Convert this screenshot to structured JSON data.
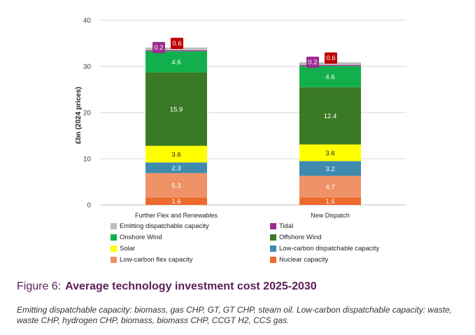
{
  "chart_data": {
    "type": "bar",
    "stacked": true,
    "categories": [
      "Further Flex and Renewables",
      "New Dispatch"
    ],
    "ylabel": "£bn (2024 prices)",
    "ylim": [
      0,
      40
    ],
    "yticks": [
      0,
      10,
      20,
      30,
      40
    ],
    "grid": true,
    "legend_position": "bottom",
    "series": [
      {
        "name": "Nuclear capacity",
        "color": "#ee6a2c",
        "label_color": "#ffffff",
        "values": [
          1.6,
          1.6
        ]
      },
      {
        "name": "Low-carbon flex capacity",
        "color": "#ef9267",
        "label_color": "#ffffff",
        "values": [
          5.3,
          4.7
        ]
      },
      {
        "name": "Low-carbon dispatchable capacity",
        "color": "#3f8bb0",
        "label_color": "#ffffff",
        "values": [
          2.3,
          3.2
        ]
      },
      {
        "name": "Solar",
        "color": "#ffff00",
        "label_color": "#222222",
        "values": [
          3.6,
          3.6
        ]
      },
      {
        "name": "Offshore Wind",
        "color": "#3b7a24",
        "label_color": "#ffffff",
        "values": [
          15.9,
          12.4
        ]
      },
      {
        "name": "Onshore Wind",
        "color": "#12b04d",
        "label_color": "#ffffff",
        "values": [
          4.6,
          4.6
        ]
      },
      {
        "name": "Tidal",
        "color": "#9c2c90",
        "label_color": "#ffffff",
        "values": [
          0.2,
          0.2
        ]
      },
      {
        "name": "Emitting dispatchable capacity",
        "color": "#bdbdbd",
        "label_color": "#222222",
        "values": [
          0.6,
          0.6
        ]
      }
    ],
    "callouts": [
      {
        "series": "Tidal",
        "text": "0.2",
        "color": "#9c2c90"
      },
      {
        "series": "Emitting dispatchable capacity",
        "text": "0.6",
        "color": "#c00000"
      }
    ],
    "legend_order": [
      "Emitting dispatchable capacity",
      "Tidal",
      "Onshore Wind",
      "Offshore Wind",
      "Solar",
      "Low-carbon dispatchable capacity",
      "Low-carbon flex capacity",
      "Nuclear capacity"
    ]
  },
  "figure": {
    "number": "Figure 6:",
    "title": "Average technology investment cost 2025-2030",
    "caption": "Emitting dispatchable capacity: biomass, gas CHP, GT, GT CHP, steam oil. Low-carbon dispatchable capacity: waste, waste CHP, hydrogen CHP, biomass, biomass CHP, CCGT H2, CCS gas."
  }
}
